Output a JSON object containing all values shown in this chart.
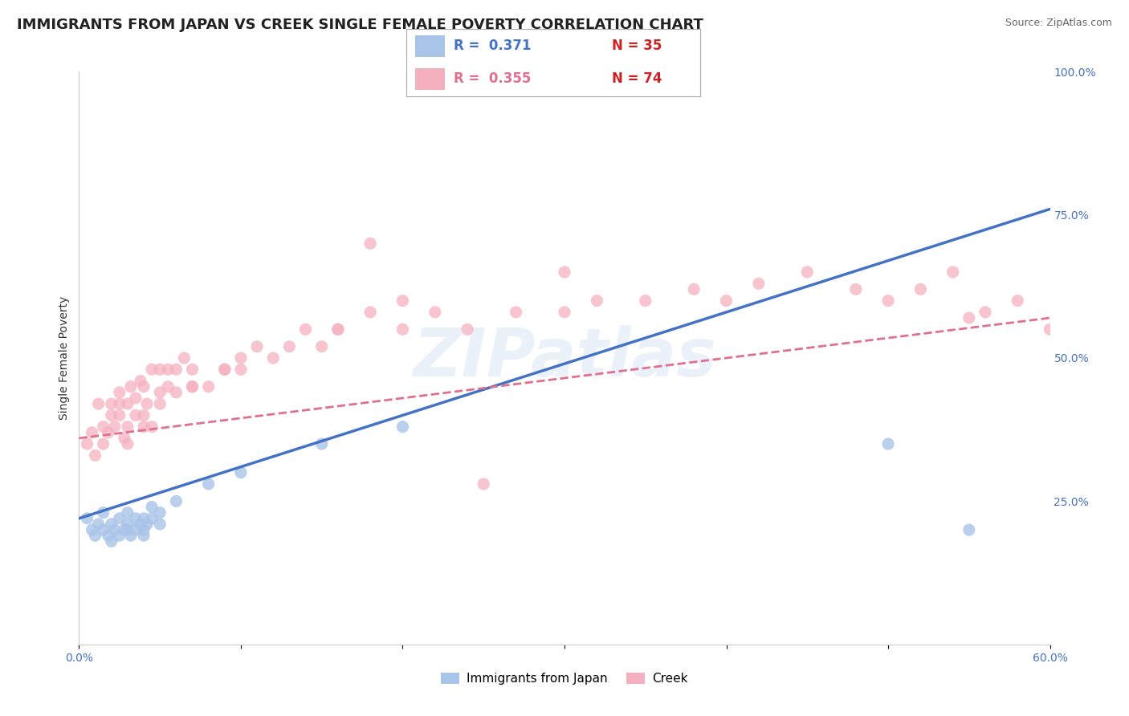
{
  "title": "IMMIGRANTS FROM JAPAN VS CREEK SINGLE FEMALE POVERTY CORRELATION CHART",
  "source": "Source: ZipAtlas.com",
  "ylabel": "Single Female Poverty",
  "xlim": [
    0.0,
    0.6
  ],
  "ylim": [
    0.0,
    1.0
  ],
  "watermark": "ZIPatlas",
  "legend_r1": "R =  0.371",
  "legend_n1": "N = 35",
  "legend_r2": "R =  0.355",
  "legend_n2": "N = 74",
  "color_japan": "#a8c4e8",
  "color_creek": "#f5b0c0",
  "color_japan_line": "#4472c4",
  "color_creek_line": "#e07090",
  "japan_scatter_x": [
    0.005,
    0.008,
    0.01,
    0.012,
    0.015,
    0.015,
    0.018,
    0.02,
    0.02,
    0.022,
    0.025,
    0.025,
    0.028,
    0.03,
    0.03,
    0.03,
    0.032,
    0.035,
    0.035,
    0.038,
    0.04,
    0.04,
    0.04,
    0.042,
    0.045,
    0.045,
    0.05,
    0.05,
    0.06,
    0.08,
    0.1,
    0.15,
    0.2,
    0.5,
    0.55
  ],
  "japan_scatter_y": [
    0.22,
    0.2,
    0.19,
    0.21,
    0.2,
    0.23,
    0.19,
    0.18,
    0.21,
    0.2,
    0.19,
    0.22,
    0.2,
    0.2,
    0.21,
    0.23,
    0.19,
    0.2,
    0.22,
    0.21,
    0.2,
    0.22,
    0.19,
    0.21,
    0.22,
    0.24,
    0.21,
    0.23,
    0.25,
    0.28,
    0.3,
    0.35,
    0.38,
    0.35,
    0.2
  ],
  "creek_scatter_x": [
    0.005,
    0.008,
    0.01,
    0.012,
    0.015,
    0.015,
    0.018,
    0.02,
    0.02,
    0.022,
    0.025,
    0.025,
    0.025,
    0.028,
    0.03,
    0.03,
    0.03,
    0.032,
    0.035,
    0.035,
    0.038,
    0.04,
    0.04,
    0.042,
    0.045,
    0.045,
    0.05,
    0.05,
    0.05,
    0.055,
    0.055,
    0.06,
    0.06,
    0.065,
    0.07,
    0.07,
    0.08,
    0.09,
    0.1,
    0.1,
    0.11,
    0.12,
    0.14,
    0.15,
    0.16,
    0.18,
    0.2,
    0.22,
    0.24,
    0.27,
    0.3,
    0.32,
    0.35,
    0.38,
    0.4,
    0.42,
    0.45,
    0.48,
    0.5,
    0.52,
    0.54,
    0.56,
    0.58,
    0.3,
    0.55,
    0.6,
    0.18,
    0.25,
    0.2,
    0.16,
    0.13,
    0.09,
    0.07,
    0.04
  ],
  "creek_scatter_y": [
    0.35,
    0.37,
    0.33,
    0.42,
    0.35,
    0.38,
    0.37,
    0.4,
    0.42,
    0.38,
    0.4,
    0.42,
    0.44,
    0.36,
    0.38,
    0.42,
    0.35,
    0.45,
    0.4,
    0.43,
    0.46,
    0.4,
    0.45,
    0.42,
    0.38,
    0.48,
    0.42,
    0.44,
    0.48,
    0.45,
    0.48,
    0.44,
    0.48,
    0.5,
    0.45,
    0.48,
    0.45,
    0.48,
    0.48,
    0.5,
    0.52,
    0.5,
    0.55,
    0.52,
    0.55,
    0.58,
    0.55,
    0.58,
    0.55,
    0.58,
    0.58,
    0.6,
    0.6,
    0.62,
    0.6,
    0.63,
    0.65,
    0.62,
    0.6,
    0.62,
    0.65,
    0.58,
    0.6,
    0.65,
    0.57,
    0.55,
    0.7,
    0.28,
    0.6,
    0.55,
    0.52,
    0.48,
    0.45,
    0.38
  ],
  "japan_line_x": [
    0.0,
    0.6
  ],
  "japan_line_y": [
    0.22,
    0.76
  ],
  "creek_line_x": [
    0.0,
    0.6
  ],
  "creek_line_y": [
    0.36,
    0.57
  ],
  "background_color": "#ffffff",
  "grid_color": "#d0d0d0",
  "title_fontsize": 13,
  "axis_fontsize": 10,
  "tick_fontsize": 10,
  "tick_color": "#4472c4"
}
